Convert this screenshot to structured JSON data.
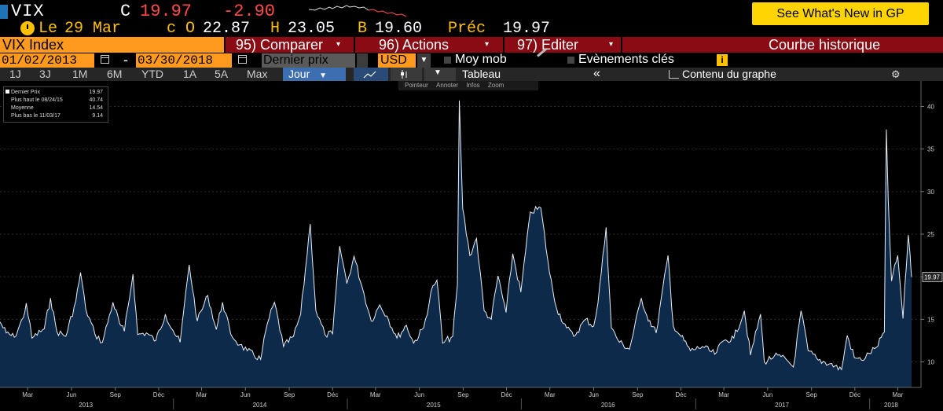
{
  "header": {
    "ticker": "VIX",
    "last_label": "C",
    "last_value": "19.97",
    "change": "-2.90",
    "whats_new": "See What's New in GP"
  },
  "quote": {
    "date_label": "Le",
    "date": "29 Mar",
    "open_label": "c O",
    "open": "22.87",
    "high_label": "H",
    "high": "23.05",
    "low_label": "B",
    "low": "19.60",
    "prev_label": "Préc",
    "prev": "19.97"
  },
  "tabs": {
    "security": "VIX Index",
    "compare": "95) Comparer",
    "actions": "96) Actions",
    "edit": "97) Editer",
    "title": "Courbe historique"
  },
  "options": {
    "start_date": "01/02/2013",
    "end_date": "03/30/2018",
    "date_sep": "-",
    "price_field": "Dernier prix",
    "currency": "USD",
    "moving_avg": "Moy mob",
    "events": "Evènements clés"
  },
  "toolbar": {
    "periods": [
      "1J",
      "3J",
      "1M",
      "6M",
      "YTD",
      "1A",
      "5A",
      "Max"
    ],
    "frequency": "Jour",
    "table": "Tableau",
    "collapse": "«",
    "content": "Contenu du graphe",
    "sub_tools": [
      "Pointeur",
      "Annoter",
      "Infos",
      "Zoom"
    ]
  },
  "legend": [
    {
      "label": "Dernier Prix",
      "value": "19.97"
    },
    {
      "label": "Plus haut le 08/24/15",
      "value": "40.74"
    },
    {
      "label": "Moyenne",
      "value": "14.54"
    },
    {
      "label": "Plus bas le 11/03/17",
      "value": "9.14"
    }
  ],
  "chart_data": {
    "type": "area",
    "series_name": "Dernier Prix",
    "line_color": "#e8eef5",
    "fill_color": "#0e2a4a",
    "background": "#000000",
    "y_range": [
      7,
      43
    ],
    "y_ticks": [
      10,
      15,
      20,
      25,
      30,
      35,
      40
    ],
    "y_axis_side": "right",
    "last_value_label": "19.97",
    "x_range": [
      "2013-01-02",
      "2018-03-30"
    ],
    "x_month_ticks": [
      {
        "date": "2013-03-01",
        "label": "Mar"
      },
      {
        "date": "2013-06-01",
        "label": "Jun"
      },
      {
        "date": "2013-09-01",
        "label": "Sep"
      },
      {
        "date": "2013-12-01",
        "label": "Déc"
      },
      {
        "date": "2014-03-01",
        "label": "Mar"
      },
      {
        "date": "2014-06-01",
        "label": "Jun"
      },
      {
        "date": "2014-09-01",
        "label": "Sep"
      },
      {
        "date": "2014-12-01",
        "label": "Déc"
      },
      {
        "date": "2015-03-01",
        "label": "Mar"
      },
      {
        "date": "2015-06-01",
        "label": "Jun"
      },
      {
        "date": "2015-09-01",
        "label": "Sep"
      },
      {
        "date": "2015-12-01",
        "label": "Déc"
      },
      {
        "date": "2016-03-01",
        "label": "Mar"
      },
      {
        "date": "2016-06-01",
        "label": "Jun"
      },
      {
        "date": "2016-09-01",
        "label": "Sep"
      },
      {
        "date": "2016-12-01",
        "label": "Déc"
      },
      {
        "date": "2017-03-01",
        "label": "Mar"
      },
      {
        "date": "2017-06-01",
        "label": "Jun"
      },
      {
        "date": "2017-09-01",
        "label": "Sep"
      },
      {
        "date": "2017-12-01",
        "label": "Déc"
      },
      {
        "date": "2018-03-01",
        "label": "Mar"
      }
    ],
    "x_year_labels": [
      {
        "date": "2013-07-01",
        "label": "2013"
      },
      {
        "date": "2014-07-01",
        "label": "2014"
      },
      {
        "date": "2015-07-01",
        "label": "2015"
      },
      {
        "date": "2016-07-01",
        "label": "2016"
      },
      {
        "date": "2017-07-01",
        "label": "2017"
      },
      {
        "date": "2018-02-15",
        "label": "2018"
      }
    ],
    "x_year_boundaries": [
      "2014-01-01",
      "2015-01-01",
      "2016-01-01",
      "2017-01-01",
      "2018-01-01"
    ],
    "points": [
      [
        "2013-01-02",
        14.7
      ],
      [
        "2013-01-15",
        13.4
      ],
      [
        "2013-02-01",
        12.9
      ],
      [
        "2013-02-20",
        15.2
      ],
      [
        "2013-02-26",
        16.9
      ],
      [
        "2013-03-10",
        12.8
      ],
      [
        "2013-04-05",
        13.9
      ],
      [
        "2013-04-18",
        17.5
      ],
      [
        "2013-05-01",
        13.6
      ],
      [
        "2013-05-20",
        13.0
      ],
      [
        "2013-06-10",
        17.1
      ],
      [
        "2013-06-20",
        20.5
      ],
      [
        "2013-07-01",
        16.2
      ],
      [
        "2013-07-20",
        13.3
      ],
      [
        "2013-08-05",
        12.3
      ],
      [
        "2013-08-27",
        17.0
      ],
      [
        "2013-09-10",
        14.5
      ],
      [
        "2013-09-20",
        13.6
      ],
      [
        "2013-10-08",
        20.3
      ],
      [
        "2013-10-18",
        13.2
      ],
      [
        "2013-11-05",
        13.4
      ],
      [
        "2013-11-25",
        12.5
      ],
      [
        "2013-12-15",
        15.6
      ],
      [
        "2013-12-31",
        13.7
      ],
      [
        "2014-01-15",
        12.3
      ],
      [
        "2014-02-03",
        21.4
      ],
      [
        "2014-02-20",
        14.8
      ],
      [
        "2014-03-14",
        17.8
      ],
      [
        "2014-04-01",
        13.8
      ],
      [
        "2014-04-14",
        17.0
      ],
      [
        "2014-05-01",
        13.3
      ],
      [
        "2014-05-20",
        12.0
      ],
      [
        "2014-06-05",
        11.3
      ],
      [
        "2014-07-03",
        10.3
      ],
      [
        "2014-07-17",
        14.5
      ],
      [
        "2014-08-01",
        17.0
      ],
      [
        "2014-08-20",
        11.8
      ],
      [
        "2014-09-10",
        13.0
      ],
      [
        "2014-09-25",
        15.6
      ],
      [
        "2014-10-15",
        26.2
      ],
      [
        "2014-10-27",
        16.0
      ],
      [
        "2014-11-15",
        13.2
      ],
      [
        "2014-12-01",
        13.3
      ],
      [
        "2014-12-16",
        23.6
      ],
      [
        "2014-12-31",
        19.2
      ],
      [
        "2015-01-15",
        22.4
      ],
      [
        "2015-02-01",
        18.8
      ],
      [
        "2015-02-20",
        14.8
      ],
      [
        "2015-03-10",
        16.7
      ],
      [
        "2015-03-25",
        15.4
      ],
      [
        "2015-04-15",
        12.8
      ],
      [
        "2015-05-05",
        14.3
      ],
      [
        "2015-05-20",
        12.2
      ],
      [
        "2015-06-10",
        14.0
      ],
      [
        "2015-06-29",
        18.9
      ],
      [
        "2015-07-08",
        19.6
      ],
      [
        "2015-07-20",
        12.2
      ],
      [
        "2015-08-10",
        13.0
      ],
      [
        "2015-08-20",
        19.1
      ],
      [
        "2015-08-24",
        40.7
      ],
      [
        "2015-08-31",
        28.0
      ],
      [
        "2015-09-15",
        22.5
      ],
      [
        "2015-09-29",
        24.5
      ],
      [
        "2015-10-15",
        16.0
      ],
      [
        "2015-10-30",
        15.0
      ],
      [
        "2015-11-13",
        20.1
      ],
      [
        "2015-11-30",
        15.8
      ],
      [
        "2015-12-14",
        22.7
      ],
      [
        "2015-12-31",
        18.2
      ],
      [
        "2016-01-20",
        27.6
      ],
      [
        "2016-02-11",
        28.1
      ],
      [
        "2016-02-29",
        20.5
      ],
      [
        "2016-03-15",
        16.3
      ],
      [
        "2016-04-05",
        14.0
      ],
      [
        "2016-04-20",
        13.0
      ],
      [
        "2016-05-15",
        15.0
      ],
      [
        "2016-06-01",
        14.2
      ],
      [
        "2016-06-10",
        17.0
      ],
      [
        "2016-06-27",
        25.8
      ],
      [
        "2016-07-08",
        14.0
      ],
      [
        "2016-07-25",
        12.3
      ],
      [
        "2016-08-15",
        11.5
      ],
      [
        "2016-09-09",
        17.5
      ],
      [
        "2016-09-20",
        15.5
      ],
      [
        "2016-10-10",
        13.4
      ],
      [
        "2016-11-04",
        22.5
      ],
      [
        "2016-11-15",
        14.2
      ],
      [
        "2016-12-01",
        13.0
      ],
      [
        "2016-12-21",
        11.3
      ],
      [
        "2017-01-15",
        11.8
      ],
      [
        "2017-02-10",
        10.9
      ],
      [
        "2017-03-01",
        12.5
      ],
      [
        "2017-03-22",
        12.8
      ],
      [
        "2017-04-13",
        16.0
      ],
      [
        "2017-04-26",
        10.8
      ],
      [
        "2017-05-17",
        15.6
      ],
      [
        "2017-05-25",
        10.0
      ],
      [
        "2017-06-15",
        10.7
      ],
      [
        "2017-07-10",
        10.3
      ],
      [
        "2017-07-25",
        9.4
      ],
      [
        "2017-08-10",
        16.0
      ],
      [
        "2017-08-25",
        11.3
      ],
      [
        "2017-09-15",
        10.2
      ],
      [
        "2017-10-10",
        9.8
      ],
      [
        "2017-11-03",
        9.1
      ],
      [
        "2017-11-15",
        13.1
      ],
      [
        "2017-11-30",
        10.5
      ],
      [
        "2017-12-15",
        10.2
      ],
      [
        "2017-12-31",
        11.0
      ],
      [
        "2018-01-15",
        11.7
      ],
      [
        "2018-02-01",
        13.5
      ],
      [
        "2018-02-05",
        37.3
      ],
      [
        "2018-02-09",
        29.1
      ],
      [
        "2018-02-16",
        19.5
      ],
      [
        "2018-03-01",
        22.5
      ],
      [
        "2018-03-12",
        15.1
      ],
      [
        "2018-03-23",
        24.9
      ],
      [
        "2018-03-27",
        22.5
      ],
      [
        "2018-03-30",
        19.97
      ]
    ]
  }
}
